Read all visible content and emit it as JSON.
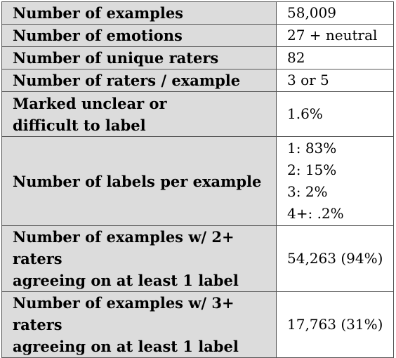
{
  "rows": [
    {
      "label": [
        "Number of examples"
      ],
      "value": [
        "58,009"
      ]
    },
    {
      "label": [
        "Number of emotions"
      ],
      "value": [
        "27 + neutral"
      ]
    },
    {
      "label": [
        "Number of unique raters"
      ],
      "value": [
        "82"
      ]
    },
    {
      "label": [
        "Number of raters / example"
      ],
      "value": [
        "3 or 5"
      ]
    },
    {
      "label": [
        "Marked unclear or",
        "difficult to label"
      ],
      "value": [
        "1.6%"
      ]
    },
    {
      "label": [
        "Number of labels per example"
      ],
      "value": [
        "1: 83%",
        "2: 15%",
        "3: 2%",
        "4+: .2%"
      ]
    },
    {
      "label": [
        "Number of examples w/ 2+ raters",
        "agreeing on at least 1 label"
      ],
      "value": [
        "54,263 (94%)"
      ]
    },
    {
      "label": [
        "Number of examples w/ 3+ raters",
        "agreeing on at least 1 label"
      ],
      "value": [
        "17,763 (31%)"
      ]
    }
  ]
}
